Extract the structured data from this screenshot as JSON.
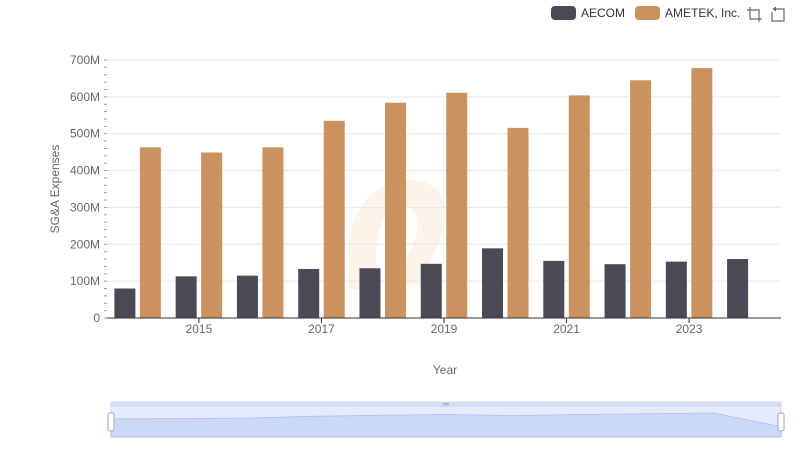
{
  "legend": {
    "items": [
      {
        "label": "AECOM",
        "color": "#4a4a57"
      },
      {
        "label": "AMETEK, Inc.",
        "color": "#c9925e"
      }
    ]
  },
  "toolbox": {
    "zoom_icon": "data-zoom-icon",
    "reset_icon": "restore-icon"
  },
  "chart_data": {
    "type": "bar",
    "xlabel": "Year",
    "ylabel": "SG&A Expenses",
    "categories": [
      "2014",
      "2015",
      "2016",
      "2017",
      "2018",
      "2019",
      "2020",
      "2021",
      "2022",
      "2023",
      "2024"
    ],
    "x_tick_labels": [
      "2015",
      "2017",
      "2019",
      "2021",
      "2023"
    ],
    "y_tick_labels": [
      "0",
      "100M",
      "200M",
      "300M",
      "400M",
      "500M",
      "600M",
      "700M"
    ],
    "ylim": [
      0,
      700000000
    ],
    "grid": true,
    "legend_position": "top-right",
    "series": [
      {
        "name": "AECOM",
        "color": "#4a4a57",
        "values": [
          80000000,
          113000000,
          115000000,
          133000000,
          135000000,
          147000000,
          189000000,
          155000000,
          146000000,
          153000000,
          160000000
        ]
      },
      {
        "name": "AMETEK, Inc.",
        "color": "#c9925e",
        "values": [
          463000000,
          449000000,
          463000000,
          535000000,
          584000000,
          611000000,
          516000000,
          604000000,
          645000000,
          678000000,
          null
        ]
      }
    ],
    "datazoom": {
      "start": 0,
      "end": 100
    }
  }
}
